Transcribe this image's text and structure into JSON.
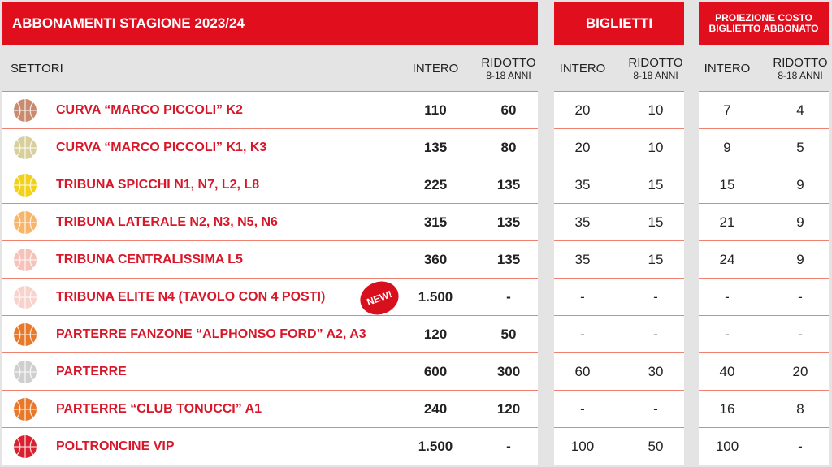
{
  "header": {
    "title": "ABBONAMENTI STAGIONE 2023/24",
    "tickets": "BIGLIETTI",
    "projection_line1": "PROIEZIONE COSTO",
    "projection_line2": "BIGLIETTO ABBONATO"
  },
  "columns": {
    "sectors": "SETTORI",
    "full": "INTERO",
    "reduced": "RIDOTTO",
    "reduced_sub": "8-18 ANNI"
  },
  "badge": "NEW!",
  "rows": [
    {
      "name": "CURVA “MARCO PICCOLI” K2",
      "color": "#c98a70",
      "sub_full": "110",
      "sub_red": "60",
      "tk_full": "20",
      "tk_red": "10",
      "pr_full": "7",
      "pr_red": "4"
    },
    {
      "name": "CURVA “MARCO PICCOLI” K1, K3",
      "color": "#d8cf9c",
      "sub_full": "135",
      "sub_red": "80",
      "tk_full": "20",
      "tk_red": "10",
      "pr_full": "9",
      "pr_red": "5"
    },
    {
      "name": "TRIBUNA SPICCHI N1, N7, L2, L8",
      "color": "#f2d11a",
      "sub_full": "225",
      "sub_red": "135",
      "tk_full": "35",
      "tk_red": "15",
      "pr_full": "15",
      "pr_red": "9"
    },
    {
      "name": "TRIBUNA LATERALE N2, N3, N5, N6",
      "color": "#f7b56c",
      "sub_full": "315",
      "sub_red": "135",
      "tk_full": "35",
      "tk_red": "15",
      "pr_full": "21",
      "pr_red": "9"
    },
    {
      "name": "TRIBUNA CENTRALISSIMA L5",
      "color": "#f6c3bb",
      "sub_full": "360",
      "sub_red": "135",
      "tk_full": "35",
      "tk_red": "15",
      "pr_full": "24",
      "pr_red": "9"
    },
    {
      "name": "TRIBUNA ELITE N4 (TAVOLO CON 4 POSTI)",
      "color": "#f8d2cc",
      "sub_full": "1.500",
      "sub_red": "-",
      "tk_full": "-",
      "tk_red": "-",
      "pr_full": "-",
      "pr_red": "-"
    },
    {
      "name": "PARTERRE FANZONE “ALPHONSO FORD” A2, A3",
      "color": "#e8782a",
      "sub_full": "120",
      "sub_red": "50",
      "tk_full": "-",
      "tk_red": "-",
      "pr_full": "-",
      "pr_red": "-"
    },
    {
      "name": "PARTERRE",
      "color": "#cfcfcf",
      "sub_full": "600",
      "sub_red": "300",
      "tk_full": "60",
      "tk_red": "30",
      "pr_full": "40",
      "pr_red": "20"
    },
    {
      "name": "PARTERRE “CLUB TONUCCI” A1",
      "color": "#e8782a",
      "sub_full": "240",
      "sub_red": "120",
      "tk_full": "-",
      "tk_red": "-",
      "pr_full": "16",
      "pr_red": "8"
    },
    {
      "name": "POLTRONCINE VIP",
      "color": "#d82030",
      "sub_full": "1.500",
      "sub_red": "-",
      "tk_full": "100",
      "tk_red": "50",
      "pr_full": "100",
      "pr_red": "-"
    }
  ]
}
